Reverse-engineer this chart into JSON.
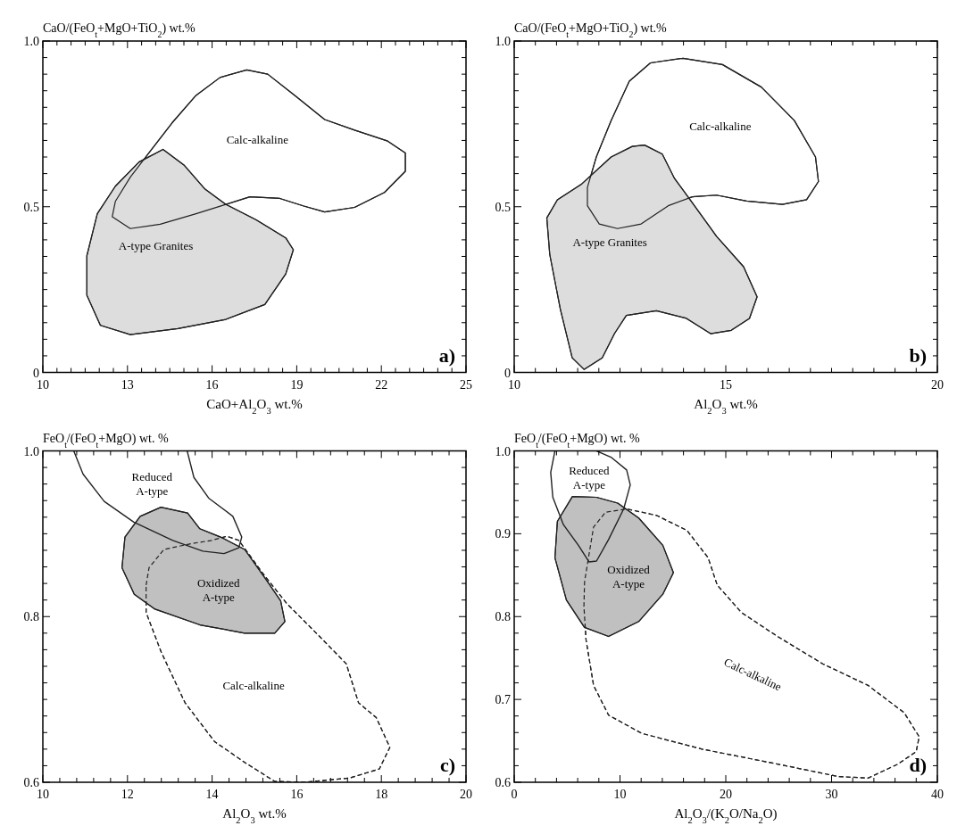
{
  "chart_data": [
    {
      "type": "line",
      "ylabel": "CaO/(FeO$_{t}$+MgO+TiO$_{2}$) wt.%",
      "xlabel": "CaO+Al$_{2}$O$_{3}$ wt.%",
      "xlim": [
        10,
        25
      ],
      "ylim": [
        0,
        1
      ],
      "xticks": [
        10,
        {
          "value": 10.5,
          "label": null
        },
        {
          "value": 11,
          "label": null
        },
        {
          "value": 11.5,
          "label": null
        },
        {
          "value": 12,
          "label": null
        },
        {
          "value": 12.5,
          "label": null
        },
        13,
        {
          "value": 13.5,
          "label": null
        },
        {
          "value": 14,
          "label": null
        },
        {
          "value": 14.5,
          "label": null
        },
        {
          "value": 15,
          "label": null
        },
        {
          "value": 15.5,
          "label": null
        },
        16,
        {
          "value": 16.5,
          "label": null
        },
        {
          "value": 17,
          "label": null
        },
        {
          "value": 17.5,
          "label": null
        },
        {
          "value": 18,
          "label": null
        },
        {
          "value": 18.5,
          "label": null
        },
        19,
        {
          "value": 19.5,
          "label": null
        },
        {
          "value": 20,
          "label": null
        },
        {
          "value": 20.5,
          "label": null
        },
        {
          "value": 21,
          "label": null
        },
        {
          "value": 21.5,
          "label": null
        },
        22,
        {
          "value": 22.5,
          "label": null
        },
        {
          "value": 23,
          "label": null
        },
        {
          "value": 23.5,
          "label": null
        },
        {
          "value": 24,
          "label": null
        },
        {
          "value": 24.5,
          "label": null
        },
        25
      ],
      "yticks": [
        0,
        {
          "value": 0.05,
          "label": null
        },
        {
          "value": 0.1,
          "label": null
        },
        {
          "value": 0.15,
          "label": null
        },
        {
          "value": 0.2,
          "label": null
        },
        {
          "value": 0.25,
          "label": null
        },
        {
          "value": 0.3,
          "label": null
        },
        {
          "value": 0.35,
          "label": null
        },
        {
          "value": 0.4,
          "label": null
        },
        {
          "value": 0.45,
          "label": null
        },
        0.5,
        {
          "value": 0.55,
          "label": null
        },
        {
          "value": 0.6,
          "label": null
        },
        {
          "value": 0.65,
          "label": null
        },
        {
          "value": 0.7,
          "label": null
        },
        {
          "value": 0.75,
          "label": null
        },
        {
          "value": 0.8,
          "label": null
        },
        {
          "value": 0.85,
          "label": null
        },
        {
          "value": 0.9,
          "label": null
        },
        {
          "value": 0.95,
          "label": null
        },
        {
          "value": 1,
          "label": "1.0"
        }
      ],
      "series": [
        {
          "type": "area",
          "color": "#ffffff",
          "line_style": "solid",
          "x": [
            12.46,
            13.1,
            14.16,
            15.43,
            16.49,
            17.34,
            18.4,
            19.25,
            19.99,
            21.05,
            22.11,
            22.85,
            22.85,
            22.2,
            21.05,
            19.99,
            18.93,
            17.97,
            17.23,
            16.28,
            15.43,
            14.58,
            13.84,
            13.1,
            12.57,
            12.46
          ],
          "values": [
            0.47,
            0.434,
            0.447,
            0.479,
            0.507,
            0.53,
            0.525,
            0.502,
            0.484,
            0.498,
            0.543,
            0.607,
            0.662,
            0.699,
            0.731,
            0.763,
            0.836,
            0.9,
            0.913,
            0.89,
            0.836,
            0.753,
            0.671,
            0.589,
            0.516,
            0.47
          ]
        },
        {
          "type": "area",
          "color": "#dddddd",
          "line_style": "solid",
          "x": [
            14.26,
            15.0,
            15.75,
            16.49,
            17.55,
            18.61,
            18.88,
            18.61,
            17.87,
            16.49,
            14.79,
            13.1,
            12.04,
            11.56,
            11.56,
            11.93,
            12.57,
            13.41,
            14.26
          ],
          "values": [
            0.673,
            0.626,
            0.553,
            0.507,
            0.461,
            0.406,
            0.37,
            0.297,
            0.205,
            0.16,
            0.132,
            0.114,
            0.142,
            0.233,
            0.352,
            0.479,
            0.562,
            0.635,
            0.673
          ]
        }
      ],
      "annotations": [
        "Calc-alkaline",
        "A-type Granites",
        "a)"
      ]
    },
    {
      "type": "line",
      "ylabel": "CaO/(FeO$_{t}$+MgO+TiO$_{2}$) wt.%",
      "xlabel": "Al$_{2}$O$_{3}$ wt.%",
      "xlim": [
        10,
        20
      ],
      "ylim": [
        0,
        1
      ],
      "xticks": [
        10,
        {
          "value": 10.5,
          "label": null
        },
        {
          "value": 11,
          "label": null
        },
        {
          "value": 11.5,
          "label": null
        },
        {
          "value": 12,
          "label": null
        },
        {
          "value": 12.5,
          "label": null
        },
        {
          "value": 13,
          "label": null
        },
        {
          "value": 13.5,
          "label": null
        },
        {
          "value": 14,
          "label": null
        },
        {
          "value": 14.5,
          "label": null
        },
        15,
        {
          "value": 15.5,
          "label": null
        },
        {
          "value": 16,
          "label": null
        },
        {
          "value": 16.5,
          "label": null
        },
        {
          "value": 17,
          "label": null
        },
        {
          "value": 17.5,
          "label": null
        },
        {
          "value": 18,
          "label": null
        },
        {
          "value": 18.5,
          "label": null
        },
        {
          "value": 19,
          "label": null
        },
        {
          "value": 19.5,
          "label": null
        },
        20
      ],
      "yticks": [
        0,
        {
          "value": 0.05,
          "label": null
        },
        {
          "value": 0.1,
          "label": null
        },
        {
          "value": 0.15,
          "label": null
        },
        {
          "value": 0.2,
          "label": null
        },
        {
          "value": 0.25,
          "label": null
        },
        {
          "value": 0.3,
          "label": null
        },
        {
          "value": 0.35,
          "label": null
        },
        {
          "value": 0.4,
          "label": null
        },
        {
          "value": 0.45,
          "label": null
        },
        0.5,
        {
          "value": 0.55,
          "label": null
        },
        {
          "value": 0.6,
          "label": null
        },
        {
          "value": 0.65,
          "label": null
        },
        {
          "value": 0.7,
          "label": null
        },
        {
          "value": 0.75,
          "label": null
        },
        {
          "value": 0.8,
          "label": null
        },
        {
          "value": 0.85,
          "label": null
        },
        {
          "value": 0.9,
          "label": null
        },
        {
          "value": 0.95,
          "label": null
        },
        {
          "value": 1,
          "label": "1.0"
        }
      ],
      "series": [
        {
          "type": "area",
          "color": "#ffffff",
          "line_style": "solid",
          "x": [
            11.73,
            12.01,
            12.44,
            13.0,
            13.64,
            14.21,
            14.78,
            15.49,
            16.34,
            16.91,
            17.19,
            17.12,
            16.62,
            15.84,
            14.92,
            13.99,
            13.22,
            12.72,
            12.29,
            11.94,
            11.73,
            11.73
          ],
          "values": [
            0.503,
            0.448,
            0.434,
            0.448,
            0.503,
            0.53,
            0.535,
            0.517,
            0.507,
            0.521,
            0.576,
            0.65,
            0.76,
            0.861,
            0.929,
            0.948,
            0.934,
            0.879,
            0.76,
            0.65,
            0.558,
            0.503
          ]
        },
        {
          "type": "area",
          "color": "#dddddd",
          "line_style": "solid",
          "x": [
            13.08,
            13.5,
            13.79,
            14.21,
            14.78,
            15.42,
            15.74,
            15.56,
            15.13,
            14.64,
            14.07,
            13.36,
            12.65,
            12.37,
            12.08,
            11.65,
            11.37,
            11.09,
            10.84,
            10.77,
            11.02,
            11.58,
            12.29,
            12.79,
            13.08
          ],
          "values": [
            0.686,
            0.659,
            0.585,
            0.512,
            0.411,
            0.319,
            0.228,
            0.163,
            0.127,
            0.117,
            0.163,
            0.186,
            0.172,
            0.117,
            0.044,
            0.009,
            0.044,
            0.191,
            0.356,
            0.466,
            0.521,
            0.567,
            0.65,
            0.682,
            0.686
          ]
        }
      ],
      "annotations": [
        "Calc-alkaline",
        "A-type Granites",
        "b)"
      ]
    },
    {
      "type": "line",
      "ylabel": "FeO$_{t}$/(FeO$_{t}$+MgO) wt. %",
      "xlabel": "Al$_{2}$O$_{3}$ wt.%",
      "xlim": [
        10,
        20
      ],
      "ylim": [
        0.6,
        1
      ],
      "xticks": [
        10,
        {
          "value": 10.4,
          "label": null
        },
        {
          "value": 10.8,
          "label": null
        },
        {
          "value": 11.2,
          "label": null
        },
        {
          "value": 11.6,
          "label": null
        },
        12,
        {
          "value": 12.4,
          "label": null
        },
        {
          "value": 12.8,
          "label": null
        },
        {
          "value": 13.2,
          "label": null
        },
        {
          "value": 13.6,
          "label": null
        },
        14,
        {
          "value": 14.4,
          "label": null
        },
        {
          "value": 14.8,
          "label": null
        },
        {
          "value": 15.2,
          "label": null
        },
        {
          "value": 15.6,
          "label": null
        },
        16,
        {
          "value": 16.4,
          "label": null
        },
        {
          "value": 16.8,
          "label": null
        },
        {
          "value": 17.2,
          "label": null
        },
        {
          "value": 17.6,
          "label": null
        },
        18,
        {
          "value": 18.4,
          "label": null
        },
        {
          "value": 18.8,
          "label": null
        },
        {
          "value": 19.2,
          "label": null
        },
        {
          "value": 19.6,
          "label": null
        },
        20
      ],
      "yticks": [
        0.6,
        {
          "value": 0.62,
          "label": null
        },
        {
          "value": 0.64,
          "label": null
        },
        {
          "value": 0.66,
          "label": null
        },
        {
          "value": 0.68,
          "label": null
        },
        {
          "value": 0.7,
          "label": null
        },
        {
          "value": 0.72,
          "label": null
        },
        {
          "value": 0.74,
          "label": null
        },
        {
          "value": 0.76,
          "label": null
        },
        {
          "value": 0.78,
          "label": null
        },
        0.8,
        {
          "value": 0.82,
          "label": null
        },
        {
          "value": 0.84,
          "label": null
        },
        {
          "value": 0.86,
          "label": null
        },
        {
          "value": 0.88,
          "label": null
        },
        {
          "value": 0.9,
          "label": null
        },
        {
          "value": 0.92,
          "label": null
        },
        {
          "value": 0.94,
          "label": null
        },
        {
          "value": 0.96,
          "label": null
        },
        {
          "value": 0.98,
          "label": null
        },
        {
          "value": 1,
          "label": "1.0"
        }
      ],
      "series": [
        {
          "type": "area",
          "color": "#ffffff",
          "line_style": "dashed",
          "x": [
            12.44,
            12.51,
            12.86,
            13.5,
            13.99,
            14.35,
            14.63,
            15.2,
            15.76,
            16.54,
            17.17,
            17.46,
            17.88,
            18.2,
            17.95,
            17.24,
            16.18,
            15.48,
            14.77,
            14.06,
            13.36,
            12.79,
            12.44,
            12.44
          ],
          "values": [
            0.838,
            0.859,
            0.881,
            0.888,
            0.892,
            0.897,
            0.892,
            0.852,
            0.816,
            0.776,
            0.743,
            0.696,
            0.678,
            0.642,
            0.616,
            0.605,
            0.6,
            0.601,
            0.624,
            0.649,
            0.696,
            0.758,
            0.805,
            0.838
          ]
        },
        {
          "type": "area",
          "color": "#c0c0c0",
          "line_style": "solid",
          "x": [
            12.79,
            13.42,
            13.71,
            14.2,
            14.77,
            15.27,
            15.62,
            15.72,
            15.48,
            14.77,
            13.71,
            12.65,
            12.16,
            11.87,
            11.94,
            12.3,
            12.79
          ],
          "values": [
            0.932,
            0.925,
            0.906,
            0.896,
            0.881,
            0.845,
            0.819,
            0.794,
            0.78,
            0.78,
            0.79,
            0.809,
            0.827,
            0.859,
            0.896,
            0.921,
            0.932
          ]
        },
        {
          "type": "line",
          "color": "#222222",
          "line_style": "solid",
          "x": [
            10.73,
            10.95,
            11.45,
            12.15,
            13.07,
            13.78,
            14.28,
            14.63,
            14.7,
            14.49,
            13.92,
            13.57,
            13.41
          ],
          "values": [
            1.0,
            0.972,
            0.939,
            0.914,
            0.892,
            0.879,
            0.876,
            0.883,
            0.896,
            0.921,
            0.943,
            0.968,
            1.0
          ]
        }
      ],
      "annotations": [
        "Reduced\nA-type",
        "Oxidized\nA-type",
        "Calc-alkaline",
        "c)"
      ]
    },
    {
      "type": "line",
      "ylabel": "FeO$_{t}$/(FeO$_{t}$+MgO) wt. %",
      "xlabel": "Al$_{2}$O$_{3}$/(K$_{2}$O/Na$_{2}$O)",
      "xlim": [
        0,
        40
      ],
      "ylim": [
        0.6,
        1
      ],
      "xticks": [
        0,
        {
          "value": 2,
          "label": null
        },
        {
          "value": 4,
          "label": null
        },
        {
          "value": 6,
          "label": null
        },
        {
          "value": 8,
          "label": null
        },
        10,
        {
          "value": 12,
          "label": null
        },
        {
          "value": 14,
          "label": null
        },
        {
          "value": 16,
          "label": null
        },
        {
          "value": 18,
          "label": null
        },
        20,
        {
          "value": 22,
          "label": null
        },
        {
          "value": 24,
          "label": null
        },
        {
          "value": 26,
          "label": null
        },
        {
          "value": 28,
          "label": null
        },
        30,
        {
          "value": 32,
          "label": null
        },
        {
          "value": 34,
          "label": null
        },
        {
          "value": 36,
          "label": null
        },
        {
          "value": 38,
          "label": null
        },
        40
      ],
      "yticks": [
        0.6,
        {
          "value": 0.62,
          "label": null
        },
        {
          "value": 0.64,
          "label": null
        },
        {
          "value": 0.66,
          "label": null
        },
        {
          "value": 0.68,
          "label": null
        },
        0.7,
        {
          "value": 0.72,
          "label": null
        },
        {
          "value": 0.74,
          "label": null
        },
        {
          "value": 0.76,
          "label": null
        },
        {
          "value": 0.78,
          "label": null
        },
        0.8,
        {
          "value": 0.82,
          "label": null
        },
        {
          "value": 0.84,
          "label": null
        },
        {
          "value": 0.86,
          "label": null
        },
        {
          "value": 0.88,
          "label": null
        },
        0.9,
        {
          "value": 0.92,
          "label": null
        },
        {
          "value": 0.94,
          "label": null
        },
        {
          "value": 0.96,
          "label": null
        },
        {
          "value": 0.98,
          "label": null
        },
        {
          "value": 1,
          "label": "1.0"
        }
      ],
      "series": [
        {
          "type": "area",
          "color": "#ffffff",
          "line_style": "dashed",
          "x": [
            6.93,
            7.5,
            8.64,
            10.63,
            13.48,
            16.33,
            18.33,
            19.19,
            21.47,
            24.89,
            29.16,
            33.44,
            36.86,
            38.28,
            38.0,
            36.29,
            33.44,
            30.59,
            24.89,
            17.76,
            12.06,
            8.92,
            7.5,
            6.79,
            6.59,
            6.65,
            6.93
          ],
          "values": [
            0.864,
            0.908,
            0.926,
            0.93,
            0.922,
            0.904,
            0.871,
            0.838,
            0.805,
            0.776,
            0.743,
            0.717,
            0.684,
            0.655,
            0.637,
            0.622,
            0.605,
            0.607,
            0.622,
            0.64,
            0.659,
            0.681,
            0.717,
            0.772,
            0.812,
            0.842,
            0.864
          ]
        },
        {
          "type": "area",
          "color": "#c0c0c0",
          "line_style": "solid",
          "x": [
            5.5,
            7.78,
            9.78,
            11.77,
            14.05,
            15.05,
            14.05,
            11.77,
            8.92,
            6.64,
            4.93,
            3.85,
            4.08,
            5.5
          ],
          "values": [
            0.945,
            0.944,
            0.937,
            0.919,
            0.886,
            0.853,
            0.827,
            0.794,
            0.776,
            0.787,
            0.82,
            0.871,
            0.915,
            0.945
          ]
        },
        {
          "type": "line",
          "color": "#222222",
          "line_style": "solid",
          "x": [
            3.85,
            3.45,
            3.65,
            4.65,
            6.07,
            7.07,
            7.78,
            8.92,
            10.35,
            10.97,
            10.63,
            9.2,
            7.78
          ],
          "values": [
            1.0,
            0.974,
            0.944,
            0.911,
            0.886,
            0.866,
            0.867,
            0.893,
            0.93,
            0.959,
            0.977,
            0.992,
            1.0
          ]
        }
      ],
      "annotations": [
        "Reduced\nA-type",
        "Oxidized\nA-type",
        "Calc-alkaline",
        "d)"
      ]
    }
  ]
}
